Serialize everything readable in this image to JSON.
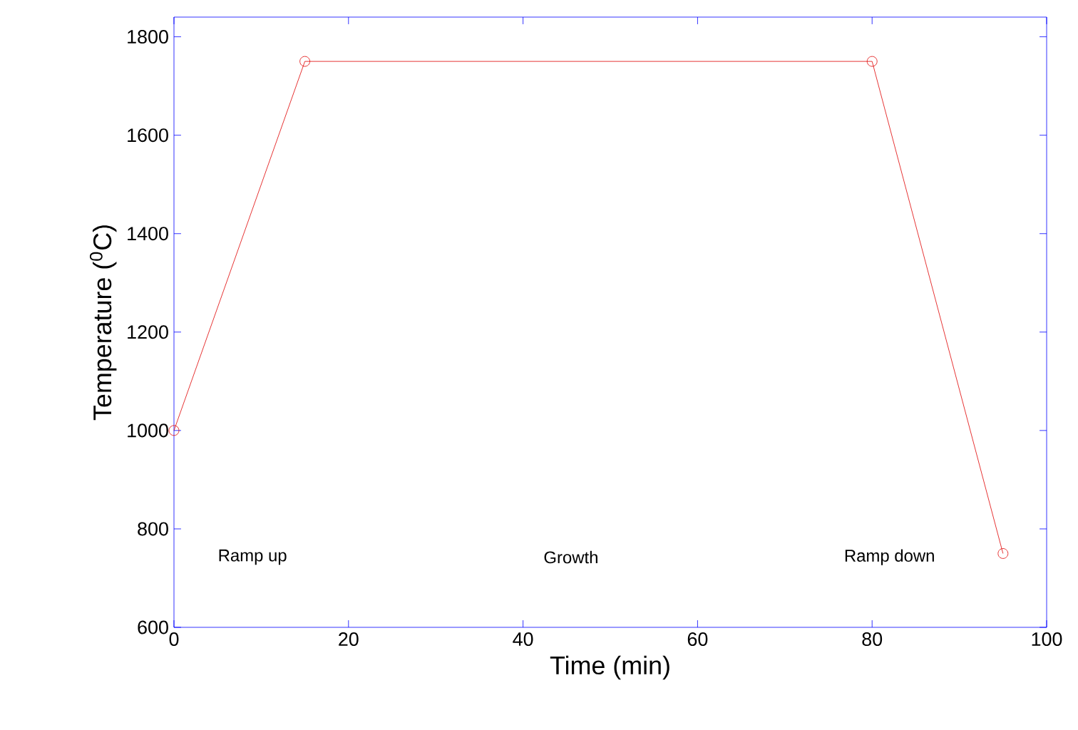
{
  "chart_data": {
    "type": "line",
    "xlabel": "Time (min)",
    "ylabel": "Temperature ($^{0}$C)",
    "x": [
      0,
      15,
      80,
      95
    ],
    "series": [
      {
        "color": "#e00000",
        "values": [
          1000,
          1750,
          1750,
          750
        ]
      }
    ],
    "xlim": [
      0,
      100
    ],
    "xticks": [
      0,
      20,
      40,
      60,
      80,
      100
    ],
    "ylim": [
      600,
      1840
    ],
    "yticks": [
      600,
      800,
      1000,
      1200,
      1400,
      1600,
      1800
    ],
    "marker": "circle",
    "line_style": "solid",
    "annotations": [
      "Ramp up",
      "Growth",
      "Ramp down"
    ]
  }
}
